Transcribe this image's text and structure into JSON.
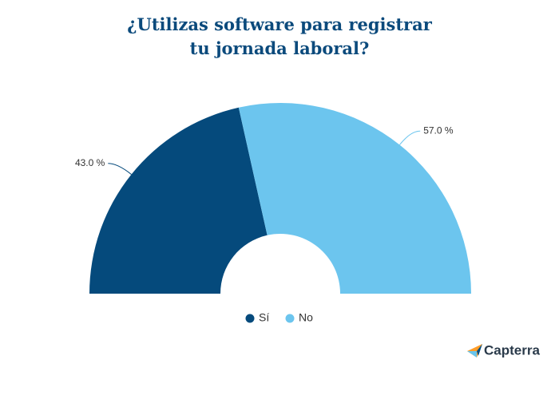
{
  "chart_data": {
    "type": "half-donut",
    "title": "¿Utilizas software para registrar\ntu jornada laboral?",
    "categories": [
      "Sí",
      "No"
    ],
    "values": [
      43,
      57
    ],
    "value_labels": [
      "43.0 %",
      "57.0 %"
    ],
    "colors": [
      "#054a7c",
      "#6cc5ee"
    ],
    "legend": "bottom",
    "brand": "Capterra"
  }
}
